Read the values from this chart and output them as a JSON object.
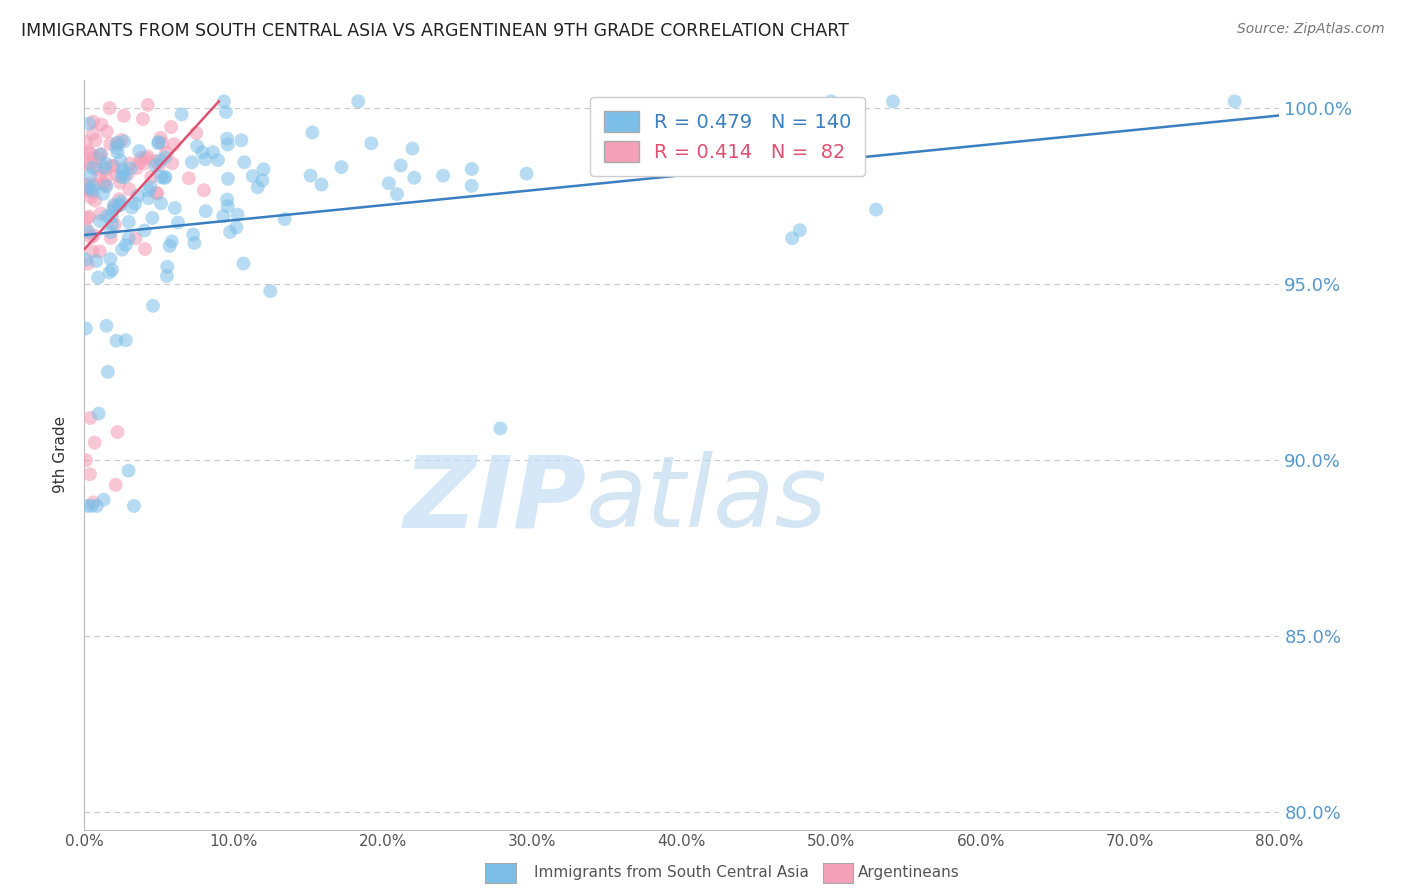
{
  "title": "IMMIGRANTS FROM SOUTH CENTRAL ASIA VS ARGENTINEAN 9TH GRADE CORRELATION CHART",
  "source": "Source: ZipAtlas.com",
  "ylabel": "9th Grade",
  "blue_label": "Immigrants from South Central Asia",
  "pink_label": "Argentineans",
  "blue_R": 0.479,
  "blue_N": 140,
  "pink_R": 0.414,
  "pink_N": 82,
  "xlim": [
    0.0,
    0.8
  ],
  "ylim": [
    0.795,
    1.008
  ],
  "xticks": [
    0.0,
    0.1,
    0.2,
    0.3,
    0.4,
    0.5,
    0.6,
    0.7,
    0.8
  ],
  "yticks": [
    0.8,
    0.85,
    0.9,
    0.95,
    1.0
  ],
  "blue_color": "#7bbfe8",
  "pink_color": "#f4a0b8",
  "blue_line_color": "#3a7fc1",
  "pink_line_color": "#e05070",
  "watermark_zip": "ZIP",
  "watermark_atlas": "atlas",
  "background_color": "#ffffff",
  "grid_color": "#c8c8d0",
  "right_label_color": "#5599cc",
  "title_color": "#222222",
  "source_color": "#777777"
}
